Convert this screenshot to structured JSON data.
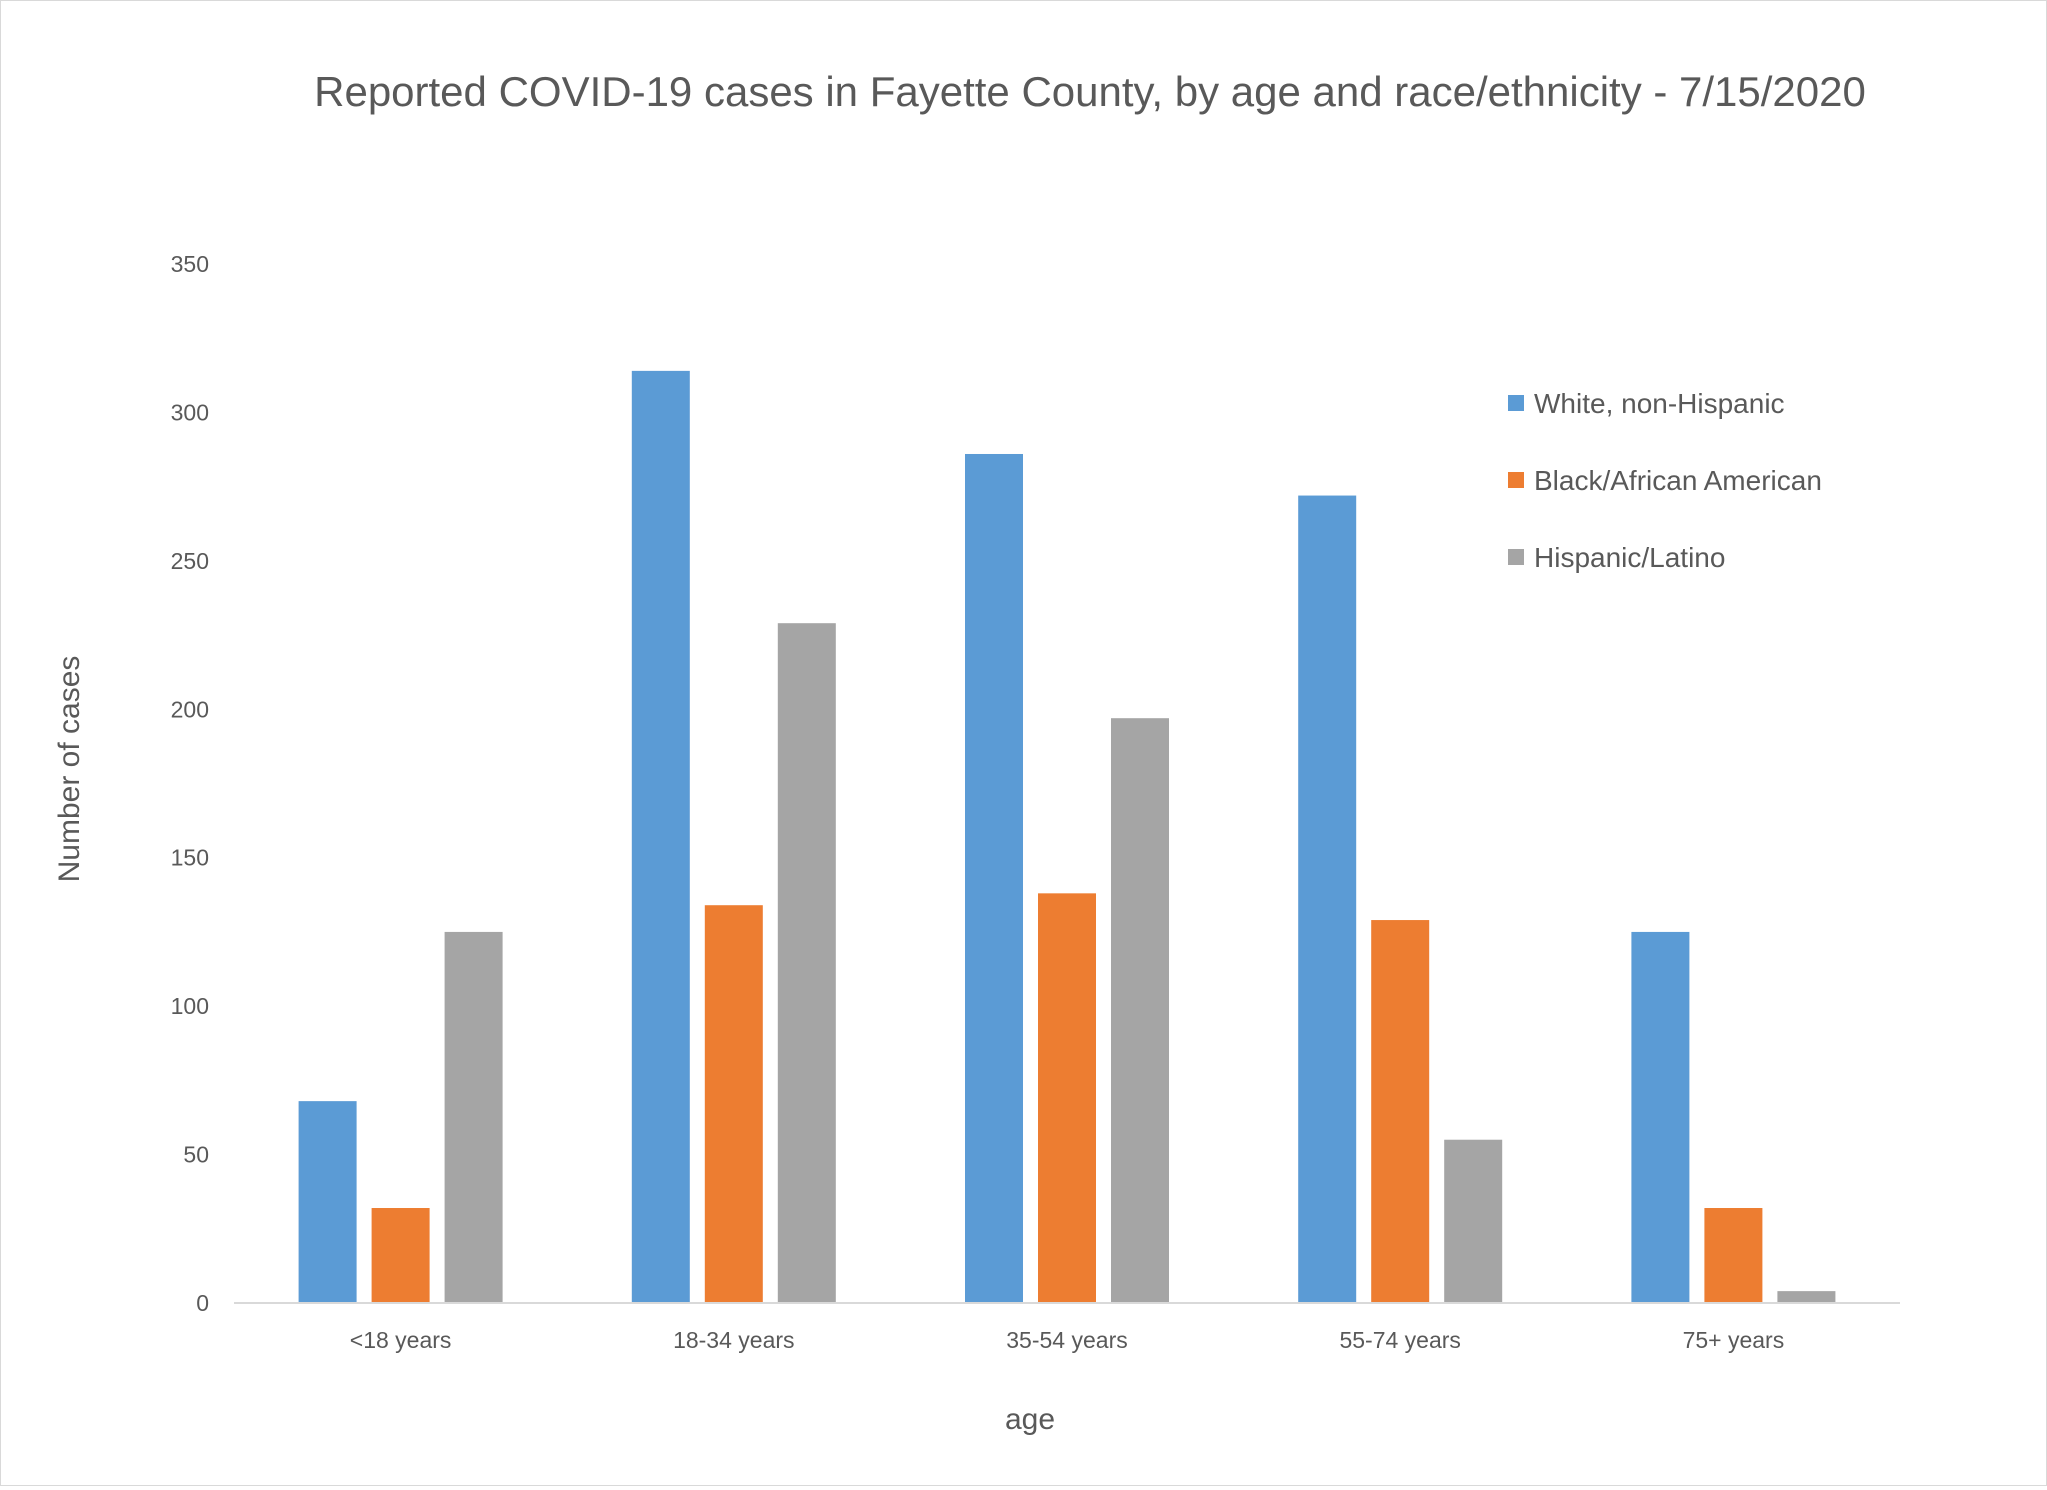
{
  "chart_data": {
    "type": "bar",
    "title": "Reported COVID-19 cases in Fayette County, by age and race/ethnicity - 7/15/2020",
    "xlabel": "age",
    "ylabel": "Number of cases",
    "ylim": [
      0,
      350
    ],
    "yticks": [
      0,
      50,
      100,
      150,
      200,
      250,
      300,
      350
    ],
    "grid": false,
    "legend_position": "top-right",
    "categories": [
      "<18 years",
      "18-34 years",
      "35-54 years",
      "55-74 years",
      "75+ years"
    ],
    "series": [
      {
        "name": "White, non-Hispanic",
        "color": "#5b9bd5",
        "values": [
          68,
          314,
          286,
          272,
          125
        ]
      },
      {
        "name": "Black/African American",
        "color": "#ed7d31",
        "values": [
          32,
          134,
          138,
          129,
          32
        ]
      },
      {
        "name": "Hispanic/Latino",
        "color": "#a5a5a5",
        "values": [
          125,
          229,
          197,
          55,
          4
        ]
      }
    ]
  }
}
